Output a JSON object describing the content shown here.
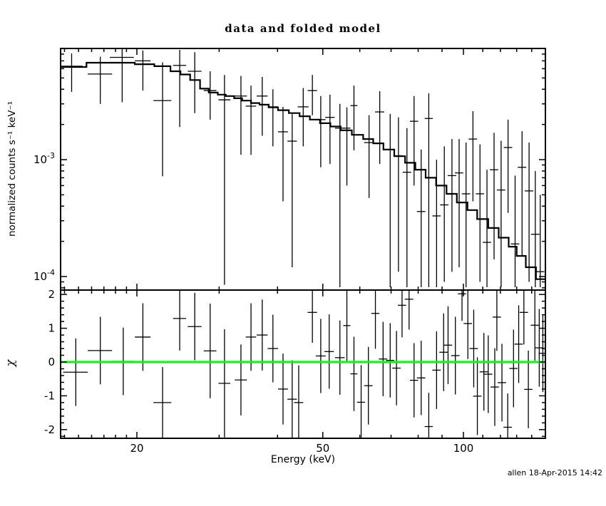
{
  "meta": {
    "background": "#ffffff",
    "foreground": "#000000",
    "zero_line_green": "#00ff00"
  },
  "footer": {
    "timestamp": "allen 18-Apr-2015 14:42"
  },
  "chart_data": {
    "type": "line",
    "title": "data and folded model",
    "xlabel": "Energy (keV)",
    "legend": "none",
    "grid": "off",
    "axes": {
      "x": {
        "scale": "log",
        "lim": [
          13.7,
          150
        ],
        "major": [
          20,
          50,
          100
        ],
        "minor": [
          14,
          15,
          16,
          17,
          18,
          19,
          30,
          40,
          60,
          70,
          80,
          90,
          110,
          120,
          130,
          140
        ]
      }
    },
    "panels": [
      {
        "name": "spectrum",
        "ylabel": "normalized counts s⁻¹ keV⁻¹",
        "yscale": "log",
        "ylim": [
          7.7e-05,
          0.0089
        ],
        "y_major": [
          {
            "v": 0.001,
            "base": "10",
            "exp": "-3"
          },
          {
            "v": 0.0001,
            "base": "10",
            "exp": "-4"
          }
        ],
        "y_minor": [
          8e-05,
          9e-05,
          0.0002,
          0.0003,
          0.0004,
          0.0005,
          0.0006,
          0.0007,
          0.0008,
          0.0009,
          0.002,
          0.003,
          0.004,
          0.005,
          0.006,
          0.007,
          0.008
        ],
        "model_bins_format": [
          "energy_lo_keV",
          "energy_hi_keV",
          "model_value"
        ],
        "model_bins": [
          [
            13.7,
            15.6,
            0.0062
          ],
          [
            15.6,
            19.8,
            0.00675
          ],
          [
            19.8,
            21.8,
            0.00655
          ],
          [
            21.8,
            23.6,
            0.0063
          ],
          [
            23.6,
            24.8,
            0.0057
          ],
          [
            24.8,
            26.0,
            0.00535
          ],
          [
            26.0,
            27.3,
            0.0048
          ],
          [
            27.3,
            28.5,
            0.00405
          ],
          [
            28.5,
            29.8,
            0.00375
          ],
          [
            29.8,
            31.0,
            0.0036
          ],
          [
            31.0,
            32.3,
            0.0035
          ],
          [
            32.3,
            33.6,
            0.00335
          ],
          [
            33.6,
            35.1,
            0.0032
          ],
          [
            35.1,
            36.6,
            0.00305
          ],
          [
            36.6,
            38.3,
            0.00295
          ],
          [
            38.3,
            40.1,
            0.0028
          ],
          [
            40.1,
            42.3,
            0.00265
          ],
          [
            42.3,
            44.6,
            0.0025
          ],
          [
            44.6,
            46.9,
            0.00235
          ],
          [
            46.9,
            49.3,
            0.0022
          ],
          [
            49.3,
            51.9,
            0.00205
          ],
          [
            51.9,
            54.6,
            0.00192
          ],
          [
            54.6,
            57.7,
            0.00178
          ],
          [
            57.7,
            61.0,
            0.00163
          ],
          [
            61.0,
            64.1,
            0.0015
          ],
          [
            64.1,
            67.4,
            0.00138
          ],
          [
            67.4,
            71.1,
            0.00122
          ],
          [
            71.1,
            75.0,
            0.00107
          ],
          [
            75.0,
            78.9,
            0.00094
          ],
          [
            78.9,
            83.0,
            0.00082
          ],
          [
            83.0,
            87.4,
            0.0007
          ],
          [
            87.4,
            92.0,
            0.0006
          ],
          [
            92.0,
            96.8,
            0.00051
          ],
          [
            96.8,
            102,
            0.00043
          ],
          [
            102,
            107,
            0.00037
          ],
          [
            107,
            113,
            0.00031
          ],
          [
            113,
            119,
            0.00026
          ],
          [
            119,
            125,
            0.000215
          ],
          [
            125,
            130,
            0.00018
          ],
          [
            130,
            136,
            0.00015
          ],
          [
            136,
            143,
            0.00012
          ],
          [
            143,
            150,
            9.5e-05
          ]
        ],
        "point_format": [
          "energy_keV",
          "energy_halfwidth_keV",
          "value",
          "value_lo",
          "value_hi"
        ],
        "points": [
          [
            14.5,
            0.8,
            0.0063,
            0.0038,
            0.0081
          ],
          [
            16.7,
            1.0,
            0.0054,
            0.003,
            0.0076
          ],
          [
            18.6,
            1.1,
            0.0075,
            0.0031,
            0.0088
          ],
          [
            20.6,
            0.8,
            0.007,
            0.0039,
            0.0086
          ],
          [
            22.7,
            1.0,
            0.0032,
            0.00072,
            0.0068
          ],
          [
            24.7,
            0.8,
            0.0064,
            0.0019,
            0.0087
          ],
          [
            26.6,
            0.9,
            0.0057,
            0.0025,
            0.0083
          ],
          [
            28.7,
            0.9,
            0.0039,
            0.0022,
            0.0057
          ],
          [
            30.8,
            0.9,
            0.00325,
            8.5e-05,
            0.0053
          ],
          [
            33.4,
            1.0,
            0.0035,
            0.0011,
            0.0052
          ],
          [
            35.1,
            0.9,
            0.00287,
            0.0011,
            0.0043
          ],
          [
            37.1,
            1.0,
            0.0035,
            0.0016,
            0.0051
          ],
          [
            39.1,
            1.0,
            0.00283,
            0.0013,
            0.004
          ],
          [
            41.1,
            1.0,
            0.00173,
            0.00044,
            0.00283
          ],
          [
            43.0,
            1.0,
            0.00144,
            0.00012,
            0.00245
          ],
          [
            45.4,
            1.2,
            0.00283,
            0.0013,
            0.0041
          ],
          [
            47.5,
            1.1,
            0.0039,
            0.0024,
            0.0053
          ],
          [
            49.5,
            1.2,
            0.0022,
            0.00086,
            0.0035
          ],
          [
            51.8,
            1.2,
            0.0023,
            0.00092,
            0.0036
          ],
          [
            54.4,
            1.3,
            0.00186,
            8.1e-05,
            0.003
          ],
          [
            56.3,
            1.0,
            0.00186,
            0.0006,
            0.0028
          ],
          [
            58.3,
            1.0,
            0.0029,
            0.0012,
            0.0043
          ],
          [
            62.8,
            1.5,
            0.0014,
            0.00047,
            0.0024
          ],
          [
            66.2,
            1.5,
            0.00256,
            0.00092,
            0.00385
          ],
          [
            69.7,
            1.5,
            0.00122,
            8.1e-05,
            0.00246
          ],
          [
            72.6,
            1.5,
            0.00108,
            0.00011,
            0.0023
          ],
          [
            75.7,
            1.6,
            0.00078,
            8.1e-05,
            0.00186
          ],
          [
            78.4,
            1.6,
            0.00213,
            0.0006,
            0.0035
          ],
          [
            81.2,
            1.7,
            0.00036,
            8.1e-05,
            0.00122
          ],
          [
            84.3,
            1.7,
            0.00225,
            8.1e-05,
            0.0037
          ],
          [
            87.6,
            1.8,
            0.00033,
            8.1e-05,
            0.001
          ],
          [
            91.0,
            1.9,
            0.00041,
            9e-05,
            0.0013
          ],
          [
            94.5,
            2.0,
            0.00073,
            0.00011,
            0.0015
          ],
          [
            97.9,
            2.0,
            0.00077,
            0.00012,
            0.0015
          ],
          [
            101.3,
            2.1,
            0.00051,
            8.1e-05,
            0.0014
          ],
          [
            104.8,
            2.2,
            0.0015,
            0.00044,
            0.0026
          ],
          [
            108.5,
            2.2,
            0.00051,
            9e-05,
            0.00135
          ],
          [
            112.3,
            2.3,
            0.000196,
            8.1e-05,
            0.00082
          ],
          [
            116.3,
            2.4,
            0.00082,
            0.00014,
            0.0017
          ],
          [
            120.4,
            2.5,
            0.00055,
            8.1e-05,
            0.00145
          ],
          [
            124.6,
            2.6,
            0.00127,
            0.00035,
            0.0022
          ],
          [
            129.0,
            2.7,
            0.00019,
            8.1e-05,
            0.00073
          ],
          [
            133.5,
            2.8,
            0.00086,
            0.00015,
            0.00175
          ],
          [
            138.2,
            2.9,
            0.00054,
            9e-05,
            0.0014
          ],
          [
            142.5,
            3.0,
            0.00023,
            8.1e-05,
            0.0008
          ],
          [
            146.0,
            3.0,
            0.00011,
            8.1e-05,
            0.0005
          ]
        ]
      },
      {
        "name": "residuals",
        "ylabel": "χ",
        "yscale": "linear",
        "ylim": [
          -2.26,
          2.13
        ],
        "y_major": [
          2,
          1,
          0,
          -1,
          -2
        ],
        "y_minor": [
          -2.2,
          -1.8,
          -1.6,
          -1.4,
          -1.2,
          -0.8,
          -0.6,
          -0.4,
          -0.2,
          0.2,
          0.4,
          0.6,
          0.8,
          1.2,
          1.4,
          1.6,
          1.8
        ],
        "zero_line_color": "#00ff00",
        "point_format": [
          "energy_keV",
          "energy_halfwidth_keV",
          "chi",
          "chi_err"
        ],
        "points": [
          [
            14.8,
            0.9,
            -0.3,
            1.0
          ],
          [
            16.7,
            1.0,
            0.34,
            1.0
          ],
          [
            18.7,
            1.1,
            0.02,
            1.0
          ],
          [
            20.6,
            0.8,
            0.74,
            1.0
          ],
          [
            22.7,
            1.0,
            -1.2,
            1.05
          ],
          [
            24.7,
            0.8,
            1.29,
            0.95
          ],
          [
            26.6,
            0.9,
            1.05,
            1.0
          ],
          [
            28.7,
            0.9,
            0.33,
            1.4
          ],
          [
            30.8,
            0.9,
            -0.63,
            1.6
          ],
          [
            33.4,
            1.0,
            -0.53,
            1.05
          ],
          [
            35.1,
            0.9,
            0.74,
            1.0
          ],
          [
            37.1,
            1.0,
            0.8,
            1.05
          ],
          [
            39.1,
            1.0,
            0.4,
            1.0
          ],
          [
            41.1,
            1.0,
            -0.8,
            1.05
          ],
          [
            43.0,
            1.0,
            -1.1,
            1.15
          ],
          [
            44.4,
            1.0,
            -1.2,
            1.1
          ],
          [
            47.5,
            1.1,
            1.47,
            0.9
          ],
          [
            49.5,
            1.2,
            0.18,
            1.1
          ],
          [
            51.6,
            1.2,
            0.31,
            1.1
          ],
          [
            54.4,
            1.3,
            0.13,
            1.1
          ],
          [
            56.3,
            1.0,
            1.08,
            1.05
          ],
          [
            58.3,
            1.0,
            -0.35,
            1.1
          ],
          [
            60.4,
            1.2,
            -1.19,
            1.1
          ],
          [
            62.6,
            1.3,
            -0.7,
            1.15
          ],
          [
            64.8,
            1.3,
            1.44,
            1.05
          ],
          [
            67.3,
            1.4,
            0.09,
            1.1
          ],
          [
            69.7,
            1.4,
            0.05,
            1.1
          ],
          [
            71.9,
            1.5,
            -0.18,
            1.1
          ],
          [
            73.9,
            1.5,
            1.68,
            0.95
          ],
          [
            76.5,
            1.6,
            1.86,
            0.9
          ],
          [
            78.4,
            1.6,
            -0.54,
            1.1
          ],
          [
            81.2,
            1.7,
            -0.47,
            1.1
          ],
          [
            84.3,
            1.7,
            -1.91,
            1.0
          ],
          [
            87.6,
            1.8,
            -0.24,
            1.15
          ],
          [
            90.7,
            1.9,
            0.29,
            1.15
          ],
          [
            92.7,
            1.9,
            0.5,
            1.15
          ],
          [
            96.1,
            2.0,
            0.19,
            1.15
          ],
          [
            99.3,
            2.0,
            2.02,
            0.8
          ],
          [
            102.2,
            2.1,
            1.14,
            1.05
          ],
          [
            105.2,
            2.2,
            0.4,
            1.15
          ],
          [
            107.1,
            2.2,
            -1.01,
            1.15
          ],
          [
            110.6,
            2.3,
            -0.29,
            1.15
          ],
          [
            113.0,
            2.3,
            -0.36,
            1.15
          ],
          [
            116.7,
            2.4,
            -0.74,
            1.15
          ],
          [
            117.9,
            2.4,
            1.33,
            1.0
          ],
          [
            120.9,
            2.5,
            -0.61,
            1.15
          ],
          [
            124.4,
            2.6,
            -1.93,
            1.0
          ],
          [
            128.0,
            2.6,
            -0.19,
            1.15
          ],
          [
            131.3,
            2.7,
            0.53,
            1.15
          ],
          [
            134.7,
            2.8,
            1.47,
            0.95
          ],
          [
            137.7,
            2.8,
            -0.81,
            1.15
          ],
          [
            142.2,
            2.9,
            1.09,
            1.05
          ],
          [
            145.3,
            3.0,
            0.42,
            1.15
          ],
          [
            147.9,
            3.0,
            0.26,
            1.15
          ]
        ]
      }
    ]
  }
}
